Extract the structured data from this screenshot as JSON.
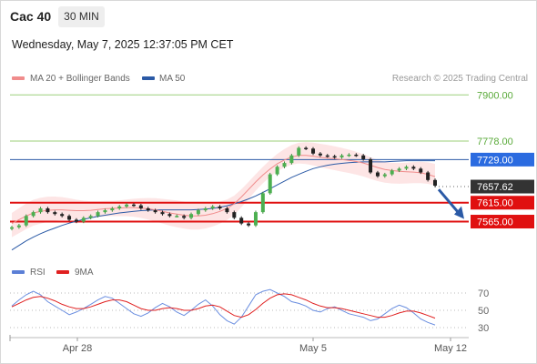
{
  "header": {
    "title": "Cac 40",
    "timeframe": "30 MIN",
    "datetime": "Wednesday, May 7, 2025 12:37:05 PM CET"
  },
  "legend": {
    "ma20": {
      "label": "MA 20 + Bollinger Bands",
      "color": "#f08c8c"
    },
    "ma50": {
      "label": "MA 50",
      "color": "#2b5aa6"
    },
    "credit": "Research © 2025 Trading Central"
  },
  "rsi_legend": {
    "rsi": {
      "label": "RSI",
      "color": "#5b7fd6"
    },
    "ma9": {
      "label": "9MA",
      "color": "#e02020"
    }
  },
  "chart_data": {
    "type": "line",
    "y_range": [
      7470,
      7920
    ],
    "levels": [
      {
        "value": 7900.0,
        "label": "7900.00",
        "kind": "green"
      },
      {
        "value": 7778.0,
        "label": "7778.00",
        "kind": "green"
      },
      {
        "value": 7729.0,
        "label": "7729.00",
        "kind": "blue"
      },
      {
        "value": 7657.62,
        "label": "7657.62",
        "kind": "last"
      },
      {
        "value": 7615.0,
        "label": "7615.00",
        "kind": "red"
      },
      {
        "value": 7565.0,
        "label": "7565.00",
        "kind": "red"
      }
    ],
    "x_ticks": [
      "Apr 28",
      "May 5",
      "May 12"
    ],
    "price_path": [
      7550,
      7555,
      7580,
      7590,
      7600,
      7590,
      7585,
      7580,
      7570,
      7565,
      7575,
      7580,
      7590,
      7595,
      7600,
      7605,
      7610,
      7608,
      7600,
      7595,
      7590,
      7585,
      7580,
      7580,
      7575,
      7585,
      7595,
      7600,
      7605,
      7600,
      7590,
      7575,
      7560,
      7555,
      7590,
      7640,
      7690,
      7710,
      7720,
      7740,
      7760,
      7758,
      7745,
      7740,
      7738,
      7735,
      7740,
      7742,
      7740,
      7730,
      7695,
      7685,
      7690,
      7700,
      7705,
      7710,
      7705,
      7695,
      7675,
      7660
    ],
    "ma20": [
      7560,
      7570,
      7580,
      7588,
      7592,
      7595,
      7596,
      7596,
      7595,
      7594,
      7594,
      7595,
      7597,
      7599,
      7600,
      7601,
      7602,
      7602,
      7601,
      7599,
      7596,
      7592,
      7588,
      7585,
      7582,
      7580,
      7580,
      7582,
      7586,
      7592,
      7600,
      7612,
      7630,
      7650,
      7670,
      7688,
      7704,
      7718,
      7728,
      7736,
      7740,
      7740,
      7738,
      7735,
      7733,
      7731,
      7729,
      7727,
      7724,
      7720,
      7714,
      7708,
      7703,
      7700,
      7698,
      7697,
      7696,
      7694,
      7690,
      7684
    ],
    "ma50": [
      7490,
      7502,
      7514,
      7524,
      7533,
      7541,
      7548,
      7555,
      7561,
      7566,
      7571,
      7575,
      7579,
      7582,
      7585,
      7588,
      7590,
      7592,
      7594,
      7595,
      7596,
      7596,
      7596,
      7596,
      7596,
      7596,
      7597,
      7598,
      7600,
      7603,
      7607,
      7612,
      7618,
      7625,
      7633,
      7642,
      7652,
      7662,
      7672,
      7682,
      7690,
      7698,
      7705,
      7710,
      7714,
      7717,
      7719,
      7721,
      7722,
      7723,
      7723,
      7723,
      7723,
      7724,
      7725,
      7726,
      7726,
      7726,
      7726,
      7726
    ],
    "rsi_ticks": [
      70,
      50,
      30
    ],
    "rsi": [
      55,
      62,
      68,
      72,
      68,
      60,
      55,
      50,
      45,
      48,
      52,
      57,
      62,
      66,
      64,
      58,
      52,
      46,
      43,
      47,
      53,
      58,
      54,
      48,
      44,
      50,
      57,
      62,
      55,
      45,
      38,
      34,
      42,
      55,
      68,
      72,
      74,
      70,
      66,
      60,
      58,
      55,
      50,
      48,
      52,
      54,
      50,
      46,
      44,
      42,
      38,
      40,
      46,
      52,
      56,
      53,
      47,
      40,
      36,
      33
    ],
    "rsi_ma9": [
      54,
      58,
      62,
      65,
      66,
      64,
      61,
      57,
      54,
      52,
      52,
      54,
      57,
      60,
      62,
      62,
      60,
      56,
      52,
      50,
      50,
      52,
      53,
      52,
      50,
      50,
      52,
      55,
      56,
      54,
      49,
      44,
      42,
      45,
      51,
      58,
      64,
      68,
      69,
      68,
      65,
      62,
      58,
      55,
      53,
      53,
      52,
      50,
      48,
      46,
      44,
      42,
      42,
      44,
      47,
      49,
      49,
      47,
      44,
      41
    ]
  }
}
